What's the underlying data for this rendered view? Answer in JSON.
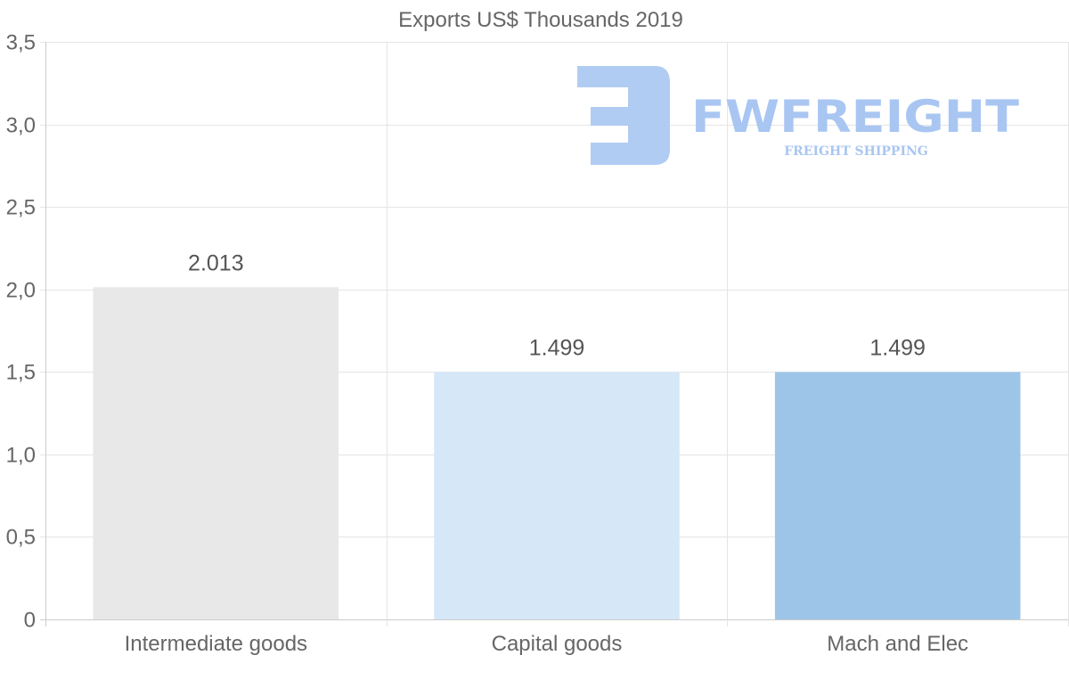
{
  "chart_data": {
    "type": "bar",
    "title": "Exports US$ Thousands 2019",
    "categories": [
      "Intermediate goods",
      "Capital goods",
      "Mach and Elec"
    ],
    "values": [
      2.013,
      1.499,
      1.499
    ],
    "value_labels": [
      "2.013",
      "1.499",
      "1.499"
    ],
    "colors": [
      "#e8e8e8",
      "#d6e7f8",
      "#9dc5e8"
    ],
    "ylim": [
      0,
      3.5
    ],
    "yticks": [
      0,
      0.5,
      1.0,
      1.5,
      2.0,
      2.5,
      3.0,
      3.5
    ],
    "ytick_labels": [
      "0",
      "0,5",
      "1,0",
      "1,5",
      "2,0",
      "2,5",
      "3,0",
      "3,5"
    ],
    "xlabel": "",
    "ylabel": "",
    "grid": true
  },
  "watermark": {
    "name": "FWFREIGHT",
    "tagline": "FREIGHT SHIPPING",
    "color": "#a9c6f2"
  }
}
